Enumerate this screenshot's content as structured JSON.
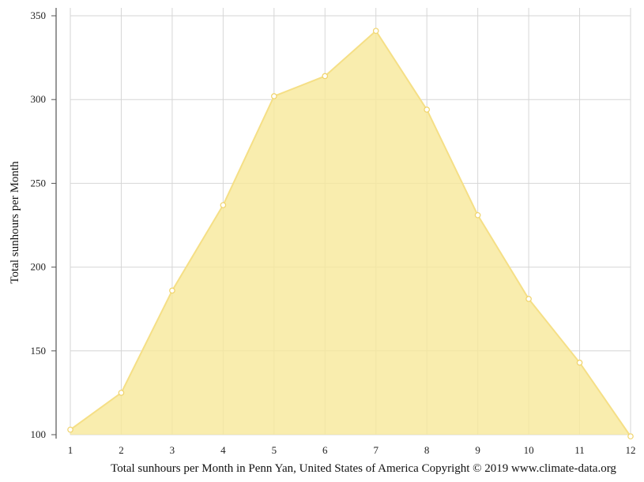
{
  "chart_data": {
    "type": "area",
    "title": "",
    "xlabel": "Total sunhours per Month in Penn Yan, United States of America Copyright © 2019 www.climate-data.org",
    "ylabel": "Total sunhours per Month",
    "x": [
      1,
      2,
      3,
      4,
      5,
      6,
      7,
      8,
      9,
      10,
      11,
      12
    ],
    "values": [
      103,
      125,
      186,
      237,
      302,
      314,
      341,
      294,
      231,
      181,
      143,
      99
    ],
    "xlim": [
      1,
      12
    ],
    "ylim": [
      100,
      350
    ],
    "yticks": [
      100,
      150,
      200,
      250,
      300,
      350
    ],
    "xticks": [
      1,
      2,
      3,
      4,
      5,
      6,
      7,
      8,
      9,
      10,
      11,
      12
    ],
    "grid": true,
    "colors": {
      "fill": "#f8e89a",
      "line": "#f5df86",
      "marker_fill": "#ffffff",
      "marker_stroke": "#f0d36a",
      "grid": "#d6d6d6",
      "axis": "#555555"
    }
  }
}
